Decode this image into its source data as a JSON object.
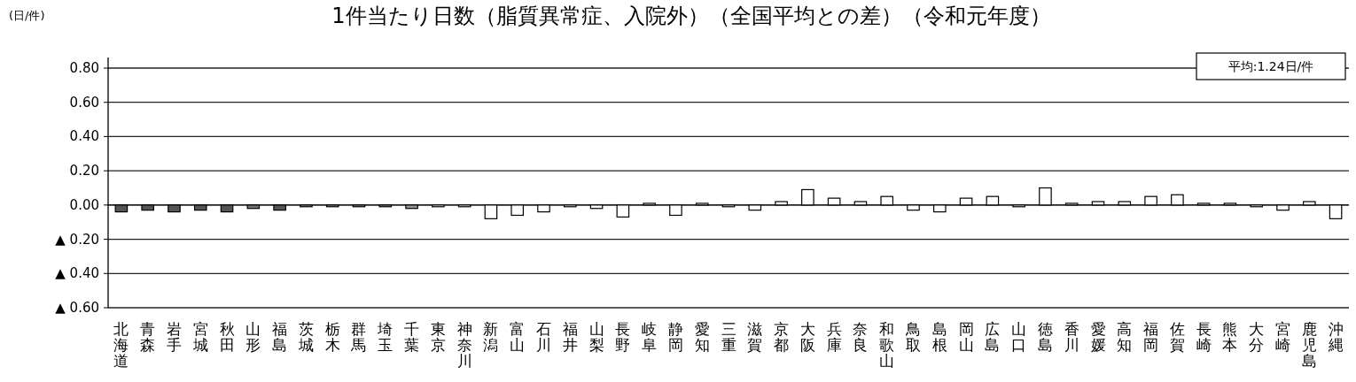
{
  "chart_data": {
    "type": "bar",
    "title": "1件当たり日数（脂質異常症、入院外）（全国平均との差）（令和元年度）",
    "ylabel": "(日/件)",
    "annotations": [
      "平均:1.24日/件"
    ],
    "categories": [
      "北海道",
      "青森",
      "岩手",
      "宮城",
      "秋田",
      "山形",
      "福島",
      "茨城",
      "栃木",
      "群馬",
      "埼玉",
      "千葉",
      "東京",
      "神奈川",
      "新潟",
      "富山",
      "石川",
      "福井",
      "山梨",
      "長野",
      "岐阜",
      "静岡",
      "愛知",
      "三重",
      "滋賀",
      "京都",
      "大阪",
      "兵庫",
      "奈良",
      "和歌山",
      "鳥取",
      "島根",
      "岡山",
      "広島",
      "山口",
      "徳島",
      "香川",
      "愛媛",
      "高知",
      "福岡",
      "佐賀",
      "長崎",
      "熊本",
      "大分",
      "宮崎",
      "鹿児島",
      "沖縄"
    ],
    "values": [
      -0.04,
      -0.03,
      -0.04,
      -0.03,
      -0.04,
      -0.02,
      -0.03,
      -0.01,
      -0.01,
      -0.01,
      -0.01,
      -0.02,
      -0.01,
      -0.01,
      -0.08,
      -0.06,
      -0.04,
      -0.01,
      -0.02,
      -0.07,
      0.01,
      -0.06,
      0.01,
      -0.01,
      -0.03,
      0.02,
      0.09,
      0.04,
      0.02,
      0.05,
      -0.03,
      -0.04,
      0.04,
      0.05,
      -0.01,
      0.1,
      0.01,
      0.02,
      0.02,
      0.05,
      0.06,
      0.01,
      0.01,
      -0.01,
      -0.03,
      0.02,
      -0.08
    ],
    "colors": [
      "#555555",
      "#555555",
      "#555555",
      "#555555",
      "#555555",
      "#777777",
      "#555555",
      "#999999",
      "#999999",
      "#999999",
      "#999999",
      "#999999",
      "#ffffff",
      "#ffffff",
      "#ffffff",
      "#ffffff",
      "#ffffff",
      "#ffffff",
      "#ffffff",
      "#ffffff",
      "#ffffff",
      "#ffffff",
      "#ffffff",
      "#ffffff",
      "#ffffff",
      "#ffffff",
      "#ffffff",
      "#ffffff",
      "#ffffff",
      "#ffffff",
      "#ffffff",
      "#ffffff",
      "#ffffff",
      "#ffffff",
      "#ffffff",
      "#ffffff",
      "#ffffff",
      "#ffffff",
      "#ffffff",
      "#ffffff",
      "#ffffff",
      "#ffffff",
      "#ffffff",
      "#ffffff",
      "#ffffff",
      "#ffffff",
      "#ffffff"
    ],
    "ylim": [
      -0.6,
      0.8
    ],
    "yticks": [
      {
        "value": -0.6,
        "label": "▲ 0.60"
      },
      {
        "value": -0.4,
        "label": "▲ 0.40"
      },
      {
        "value": -0.2,
        "label": "▲ 0.20"
      },
      {
        "value": 0,
        "label": "0.00"
      },
      {
        "value": 0.2,
        "label": "0.20"
      },
      {
        "value": 0.4,
        "label": "0.40"
      },
      {
        "value": 0.6,
        "label": "0.60"
      },
      {
        "value": 0.8,
        "label": "0.80"
      }
    ],
    "grid": "y"
  }
}
